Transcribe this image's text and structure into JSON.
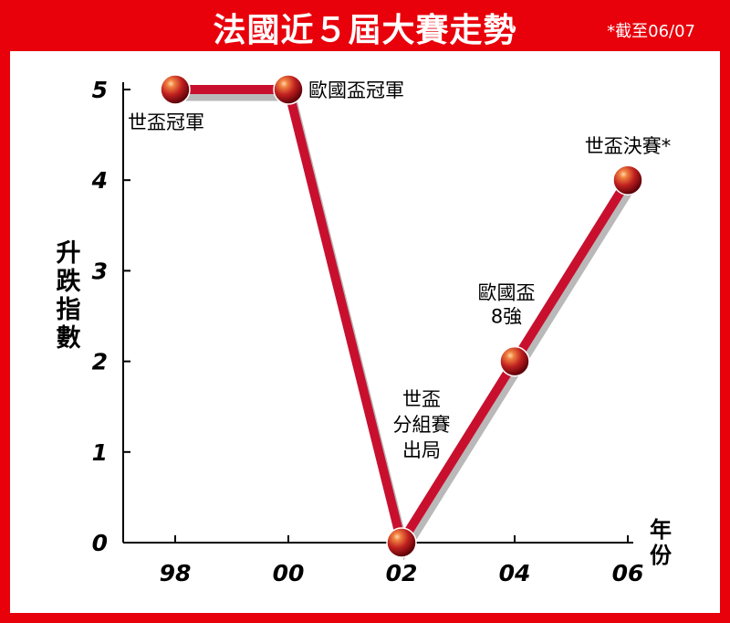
{
  "header": {
    "title": "法國近５屆大賽走勢",
    "note": "*截至06/07",
    "color": "#e8000b"
  },
  "chart_data": {
    "type": "line",
    "title": "法國近５屆大賽走勢",
    "xlabel": "年份",
    "ylabel": "升跌指數",
    "x": [
      "98",
      "00",
      "02",
      "04",
      "06"
    ],
    "series": [
      {
        "values": [
          5,
          5,
          0,
          2,
          4
        ]
      }
    ],
    "ylim": [
      0,
      5
    ],
    "yticks": [
      "0",
      "1",
      "2",
      "3",
      "4",
      "5"
    ],
    "annotations": [
      {
        "point": 0,
        "lines": [
          "世盃冠軍"
        ]
      },
      {
        "point": 1,
        "lines": [
          "歐國盃冠軍"
        ]
      },
      {
        "point": 2,
        "lines": [
          "世盃",
          "分組賽",
          "出局"
        ]
      },
      {
        "point": 3,
        "lines": [
          "歐國盃",
          "8強"
        ]
      },
      {
        "point": 4,
        "lines": [
          "世盃決賽*"
        ]
      }
    ],
    "line_color": "#c8102e",
    "marker_color": "#c0201f",
    "grid": false
  }
}
